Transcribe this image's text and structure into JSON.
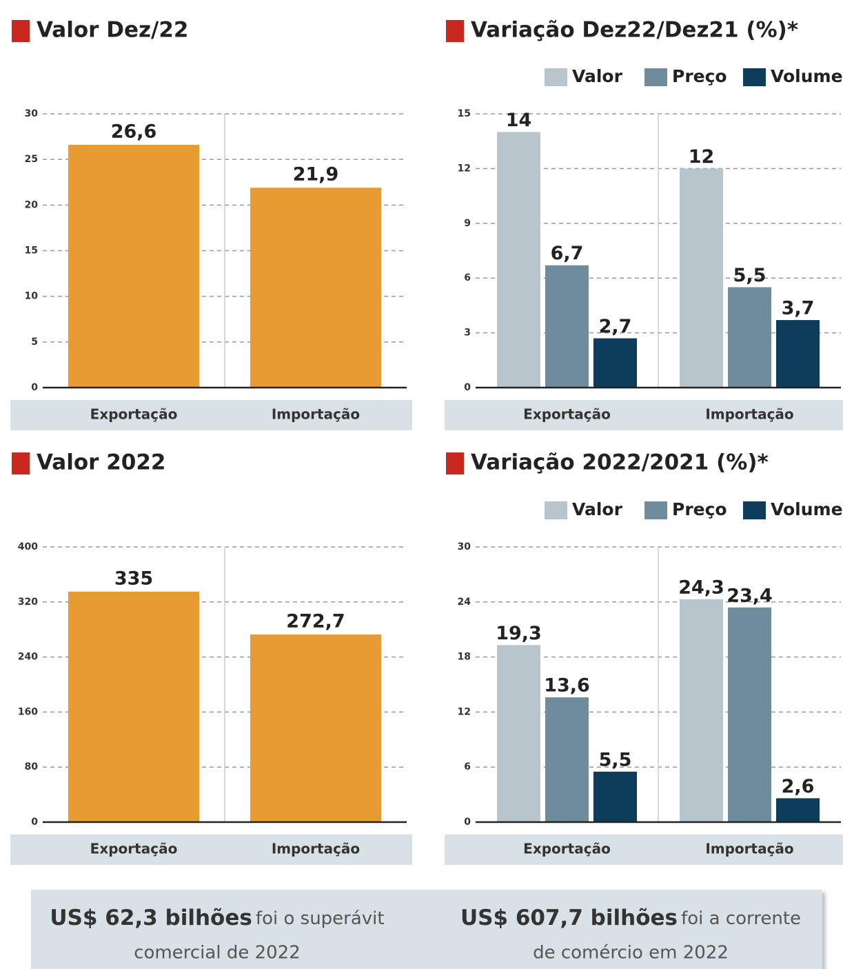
{
  "chart_data": [
    {
      "type": "bar",
      "title": "Valor Dez/22",
      "categories": [
        "Exportação",
        "Importação"
      ],
      "values": [
        26.6,
        21.9
      ],
      "value_labels": [
        "26,6",
        "21,9"
      ],
      "color": "#e89a33",
      "ylim": [
        0,
        30
      ],
      "yticks": [
        0,
        5,
        10,
        15,
        20,
        25,
        30
      ],
      "grid": true
    },
    {
      "type": "grouped_bar",
      "title": "Variação Dez22/Dez21 (%)*",
      "categories": [
        "Exportação",
        "Importação"
      ],
      "series": [
        {
          "name": "Valor",
          "color": "#b8c5cd",
          "values": [
            14,
            12
          ],
          "value_labels": [
            "14",
            "12"
          ]
        },
        {
          "name": "Preço",
          "color": "#6e8c9d",
          "values": [
            6.7,
            5.5
          ],
          "value_labels": [
            "6,7",
            "5,5"
          ]
        },
        {
          "name": "Volume",
          "color": "#0e3d5c",
          "values": [
            2.7,
            3.7
          ],
          "value_labels": [
            "2,7",
            "3,7"
          ]
        }
      ],
      "ylim": [
        0,
        15
      ],
      "yticks": [
        0,
        3,
        6,
        9,
        12,
        15
      ],
      "grid": true,
      "legend": "top-right"
    },
    {
      "type": "bar",
      "title": "Valor 2022",
      "categories": [
        "Exportação",
        "Importação"
      ],
      "values": [
        335,
        272.7
      ],
      "value_labels": [
        "335",
        "272,7"
      ],
      "color": "#e89a33",
      "ylim": [
        0,
        400
      ],
      "yticks": [
        0,
        80,
        160,
        240,
        320,
        400
      ],
      "grid": true
    },
    {
      "type": "grouped_bar",
      "title": "Variação 2022/2021 (%)*",
      "categories": [
        "Exportação",
        "Importação"
      ],
      "series": [
        {
          "name": "Valor",
          "color": "#b8c5cd",
          "values": [
            19.3,
            24.3
          ],
          "value_labels": [
            "19,3",
            "24,3"
          ]
        },
        {
          "name": "Preço",
          "color": "#6e8c9d",
          "values": [
            13.6,
            23.4
          ],
          "value_labels": [
            "13,6",
            "23,4"
          ]
        },
        {
          "name": "Volume",
          "color": "#0e3d5c",
          "values": [
            5.5,
            2.6
          ],
          "value_labels": [
            "5,5",
            "2,6"
          ]
        }
      ],
      "ylim": [
        0,
        30
      ],
      "yticks": [
        0,
        6,
        12,
        18,
        24,
        30
      ],
      "grid": true,
      "legend": "top-right"
    }
  ],
  "footer": [
    {
      "highlight": "US$ 62,3 bilhões",
      "line1": "foi o superávit",
      "line2": "comercial de 2022"
    },
    {
      "highlight": "US$ 607,7 bilhões",
      "line1": "foi a corrente",
      "line2": "de comércio em 2022"
    }
  ]
}
